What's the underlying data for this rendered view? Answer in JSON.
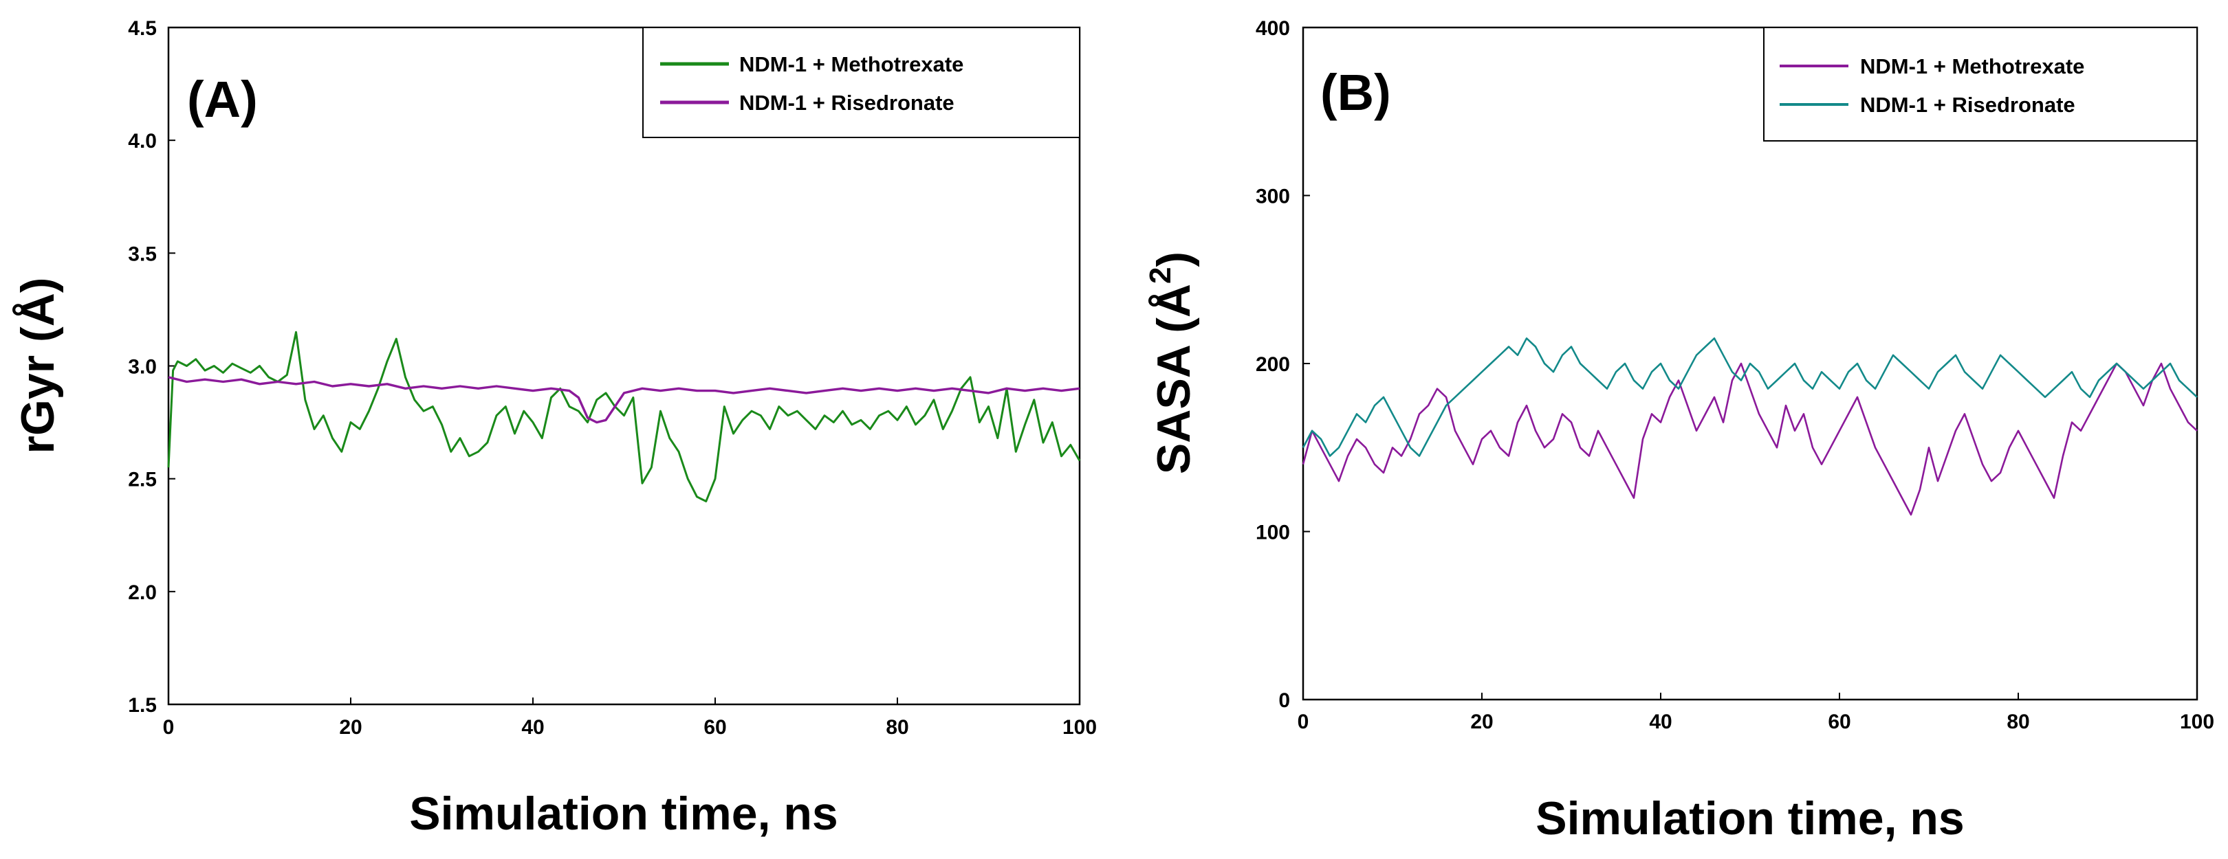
{
  "chart_data": [
    {
      "type": "line",
      "panel_label": "(A)",
      "xlabel": "Simulation time, ns",
      "ylabel": "rGyr (Å)",
      "xlim": [
        0,
        100
      ],
      "ylim": [
        1.5,
        4.5
      ],
      "xticks": [
        0,
        20,
        40,
        60,
        80,
        100
      ],
      "yticks": [
        1.5,
        2.0,
        2.5,
        3.0,
        3.5,
        4.0,
        4.5
      ],
      "ytick_decimals": 1,
      "legend_position": "top-right",
      "series": [
        {
          "name": "NDM-1 + Methotrexate",
          "color": "#1a8a1a",
          "x": [
            0,
            0.5,
            1,
            2,
            3,
            4,
            5,
            6,
            7,
            8,
            9,
            10,
            11,
            12,
            13,
            14,
            15,
            16,
            17,
            18,
            19,
            20,
            21,
            22,
            23,
            24,
            25,
            26,
            27,
            28,
            29,
            30,
            31,
            32,
            33,
            34,
            35,
            36,
            37,
            38,
            39,
            40,
            41,
            42,
            43,
            44,
            45,
            46,
            47,
            48,
            49,
            50,
            51,
            52,
            53,
            54,
            55,
            56,
            57,
            58,
            59,
            60,
            61,
            62,
            63,
            64,
            65,
            66,
            67,
            68,
            69,
            70,
            71,
            72,
            73,
            74,
            75,
            76,
            77,
            78,
            79,
            80,
            81,
            82,
            83,
            84,
            85,
            86,
            87,
            88,
            89,
            90,
            91,
            92,
            93,
            94,
            95,
            96,
            97,
            98,
            99,
            100
          ],
          "values": [
            2.55,
            2.98,
            3.02,
            3.0,
            3.03,
            2.98,
            3.0,
            2.97,
            3.01,
            2.99,
            2.97,
            3.0,
            2.95,
            2.93,
            2.96,
            3.15,
            2.85,
            2.72,
            2.78,
            2.68,
            2.62,
            2.75,
            2.72,
            2.8,
            2.9,
            3.02,
            3.12,
            2.95,
            2.85,
            2.8,
            2.82,
            2.74,
            2.62,
            2.68,
            2.6,
            2.62,
            2.66,
            2.78,
            2.82,
            2.7,
            2.8,
            2.75,
            2.68,
            2.86,
            2.9,
            2.82,
            2.8,
            2.75,
            2.85,
            2.88,
            2.82,
            2.78,
            2.86,
            2.48,
            2.55,
            2.8,
            2.68,
            2.62,
            2.5,
            2.42,
            2.4,
            2.5,
            2.82,
            2.7,
            2.76,
            2.8,
            2.78,
            2.72,
            2.82,
            2.78,
            2.8,
            2.76,
            2.72,
            2.78,
            2.75,
            2.8,
            2.74,
            2.76,
            2.72,
            2.78,
            2.8,
            2.76,
            2.82,
            2.74,
            2.78,
            2.85,
            2.72,
            2.8,
            2.9,
            2.95,
            2.75,
            2.82,
            2.68,
            2.9,
            2.62,
            2.74,
            2.85,
            2.66,
            2.75,
            2.6,
            2.65,
            2.58
          ]
        },
        {
          "name": "NDM-1 + Risedronate",
          "color": "#8b1a9a",
          "x": [
            0,
            2,
            4,
            6,
            8,
            10,
            12,
            14,
            16,
            18,
            20,
            22,
            24,
            26,
            28,
            30,
            32,
            34,
            36,
            38,
            40,
            42,
            44,
            45,
            46,
            47,
            48,
            49,
            50,
            52,
            54,
            56,
            58,
            60,
            62,
            64,
            66,
            68,
            70,
            72,
            74,
            76,
            78,
            80,
            82,
            84,
            86,
            88,
            90,
            92,
            94,
            96,
            98,
            100
          ],
          "values": [
            2.95,
            2.93,
            2.94,
            2.93,
            2.94,
            2.92,
            2.93,
            2.92,
            2.93,
            2.91,
            2.92,
            2.91,
            2.92,
            2.9,
            2.91,
            2.9,
            2.91,
            2.9,
            2.91,
            2.9,
            2.89,
            2.9,
            2.89,
            2.86,
            2.77,
            2.75,
            2.76,
            2.82,
            2.88,
            2.9,
            2.89,
            2.9,
            2.89,
            2.89,
            2.88,
            2.89,
            2.9,
            2.89,
            2.88,
            2.89,
            2.9,
            2.89,
            2.9,
            2.89,
            2.9,
            2.89,
            2.9,
            2.89,
            2.88,
            2.9,
            2.89,
            2.9,
            2.89,
            2.9
          ]
        }
      ]
    },
    {
      "type": "line",
      "panel_label": "(B)",
      "xlabel": "Simulation time, ns",
      "ylabel": "SASA (Å²)",
      "ylabel_main": "SASA (Å",
      "ylabel_sup": "2",
      "ylabel_end": ")",
      "xlim": [
        0,
        100
      ],
      "ylim": [
        0,
        400
      ],
      "xticks": [
        0,
        20,
        40,
        60,
        80,
        100
      ],
      "yticks": [
        0,
        100,
        200,
        300,
        400
      ],
      "ytick_decimals": 0,
      "legend_position": "top-right",
      "series": [
        {
          "name": "NDM-1 + Methotrexate",
          "color": "#8b1a9a",
          "x": [
            0,
            1,
            2,
            3,
            4,
            5,
            6,
            7,
            8,
            9,
            10,
            11,
            12,
            13,
            14,
            15,
            16,
            17,
            18,
            19,
            20,
            21,
            22,
            23,
            24,
            25,
            26,
            27,
            28,
            29,
            30,
            31,
            32,
            33,
            34,
            35,
            36,
            37,
            38,
            39,
            40,
            41,
            42,
            43,
            44,
            45,
            46,
            47,
            48,
            49,
            50,
            51,
            52,
            53,
            54,
            55,
            56,
            57,
            58,
            59,
            60,
            61,
            62,
            63,
            64,
            65,
            66,
            67,
            68,
            69,
            70,
            71,
            72,
            73,
            74,
            75,
            76,
            77,
            78,
            79,
            80,
            81,
            82,
            83,
            84,
            85,
            86,
            87,
            88,
            89,
            90,
            91,
            92,
            93,
            94,
            95,
            96,
            97,
            98,
            99,
            100
          ],
          "values": [
            140,
            160,
            150,
            140,
            130,
            145,
            155,
            150,
            140,
            135,
            150,
            145,
            155,
            170,
            175,
            185,
            180,
            160,
            150,
            140,
            155,
            160,
            150,
            145,
            165,
            175,
            160,
            150,
            155,
            170,
            165,
            150,
            145,
            160,
            150,
            140,
            130,
            120,
            155,
            170,
            165,
            180,
            190,
            175,
            160,
            170,
            180,
            165,
            190,
            200,
            185,
            170,
            160,
            150,
            175,
            160,
            170,
            150,
            140,
            150,
            160,
            170,
            180,
            165,
            150,
            140,
            130,
            120,
            110,
            125,
            150,
            130,
            145,
            160,
            170,
            155,
            140,
            130,
            135,
            150,
            160,
            150,
            140,
            130,
            120,
            145,
            165,
            160,
            170,
            180,
            190,
            200,
            195,
            185,
            175,
            190,
            200,
            185,
            175,
            165,
            160
          ]
        },
        {
          "name": "NDM-1 + Risedronate",
          "color": "#138a8a",
          "x": [
            0,
            1,
            2,
            3,
            4,
            5,
            6,
            7,
            8,
            9,
            10,
            11,
            12,
            13,
            14,
            15,
            16,
            17,
            18,
            19,
            20,
            21,
            22,
            23,
            24,
            25,
            26,
            27,
            28,
            29,
            30,
            31,
            32,
            33,
            34,
            35,
            36,
            37,
            38,
            39,
            40,
            41,
            42,
            43,
            44,
            45,
            46,
            47,
            48,
            49,
            50,
            51,
            52,
            53,
            54,
            55,
            56,
            57,
            58,
            59,
            60,
            61,
            62,
            63,
            64,
            65,
            66,
            67,
            68,
            69,
            70,
            71,
            72,
            73,
            74,
            75,
            76,
            77,
            78,
            79,
            80,
            81,
            82,
            83,
            84,
            85,
            86,
            87,
            88,
            89,
            90,
            91,
            92,
            93,
            94,
            95,
            96,
            97,
            98,
            99,
            100
          ],
          "values": [
            150,
            160,
            155,
            145,
            150,
            160,
            170,
            165,
            175,
            180,
            170,
            160,
            150,
            145,
            155,
            165,
            175,
            180,
            185,
            190,
            195,
            200,
            205,
            210,
            205,
            215,
            210,
            200,
            195,
            205,
            210,
            200,
            195,
            190,
            185,
            195,
            200,
            190,
            185,
            195,
            200,
            190,
            185,
            195,
            205,
            210,
            215,
            205,
            195,
            190,
            200,
            195,
            185,
            190,
            195,
            200,
            190,
            185,
            195,
            190,
            185,
            195,
            200,
            190,
            185,
            195,
            205,
            200,
            195,
            190,
            185,
            195,
            200,
            205,
            195,
            190,
            185,
            195,
            205,
            200,
            195,
            190,
            185,
            180,
            185,
            190,
            195,
            185,
            180,
            190,
            195,
            200,
            195,
            190,
            185,
            190,
            195,
            200,
            190,
            185,
            180
          ]
        }
      ]
    }
  ]
}
